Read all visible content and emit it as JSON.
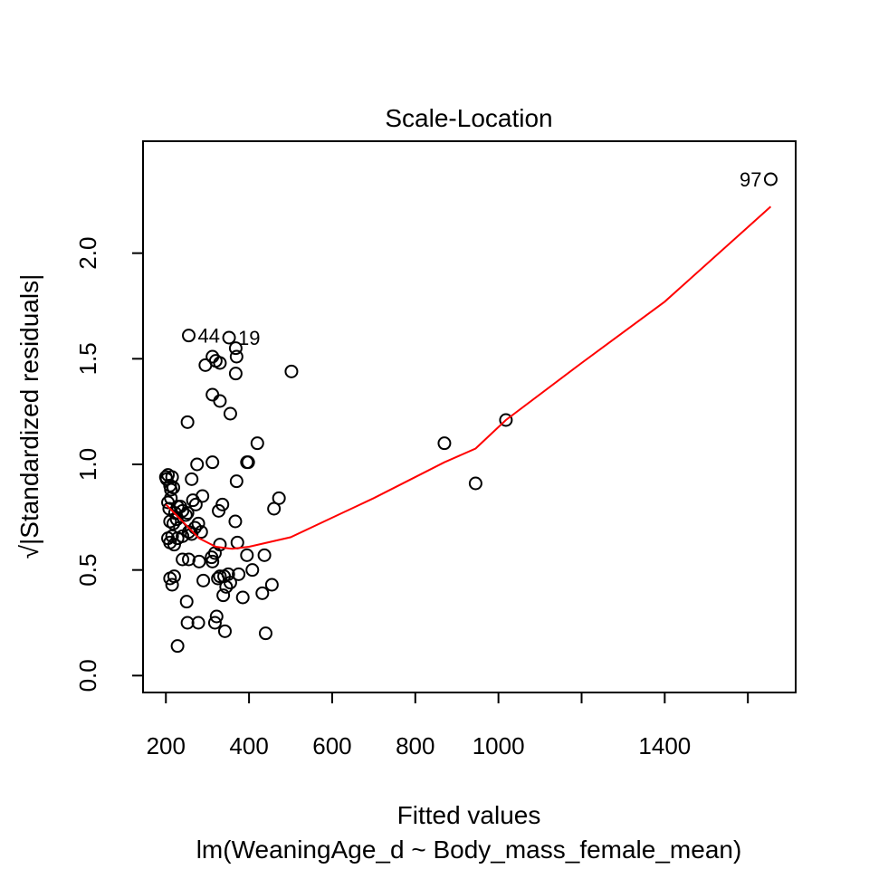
{
  "chart_data": {
    "type": "scatter",
    "title": "Scale-Location",
    "xlabel": "Fitted values",
    "subtitle": "lm(WeaningAge_d ~ Body_mass_female_mean)",
    "ylabel": "√|Standardized residuals|",
    "xlim": [
      145,
      1715
    ],
    "ylim": [
      -0.08,
      2.53
    ],
    "xticks": [
      {
        "value": 200,
        "label": "200"
      },
      {
        "value": 400,
        "label": "400"
      },
      {
        "value": 600,
        "label": "600"
      },
      {
        "value": 800,
        "label": "800"
      },
      {
        "value": 1000,
        "label": "1000"
      },
      {
        "value": 1200,
        "label": ""
      },
      {
        "value": 1400,
        "label": "1400"
      },
      {
        "value": 1600,
        "label": ""
      }
    ],
    "yticks": [
      {
        "value": 0.0,
        "label": "0.0"
      },
      {
        "value": 0.5,
        "label": "0.5"
      },
      {
        "value": 1.0,
        "label": "1.0"
      },
      {
        "value": 1.5,
        "label": "1.5"
      },
      {
        "value": 2.0,
        "label": "2.0"
      }
    ],
    "points": [
      {
        "x": 200,
        "y": 0.94
      },
      {
        "x": 202,
        "y": 0.93
      },
      {
        "x": 205,
        "y": 0.95
      },
      {
        "x": 210,
        "y": 0.9
      },
      {
        "x": 212,
        "y": 0.88
      },
      {
        "x": 215,
        "y": 0.94
      },
      {
        "x": 218,
        "y": 0.89
      },
      {
        "x": 205,
        "y": 0.82
      },
      {
        "x": 208,
        "y": 0.79
      },
      {
        "x": 212,
        "y": 0.84
      },
      {
        "x": 222,
        "y": 0.77
      },
      {
        "x": 228,
        "y": 0.8
      },
      {
        "x": 235,
        "y": 0.8
      },
      {
        "x": 240,
        "y": 0.78
      },
      {
        "x": 248,
        "y": 0.76
      },
      {
        "x": 252,
        "y": 0.77
      },
      {
        "x": 210,
        "y": 0.73
      },
      {
        "x": 218,
        "y": 0.72
      },
      {
        "x": 226,
        "y": 0.74
      },
      {
        "x": 234,
        "y": 0.7
      },
      {
        "x": 205,
        "y": 0.65
      },
      {
        "x": 210,
        "y": 0.63
      },
      {
        "x": 215,
        "y": 0.66
      },
      {
        "x": 220,
        "y": 0.62
      },
      {
        "x": 228,
        "y": 0.65
      },
      {
        "x": 240,
        "y": 0.66
      },
      {
        "x": 255,
        "y": 0.68
      },
      {
        "x": 262,
        "y": 0.67
      },
      {
        "x": 270,
        "y": 0.7
      },
      {
        "x": 278,
        "y": 0.72
      },
      {
        "x": 285,
        "y": 0.68
      },
      {
        "x": 265,
        "y": 0.83
      },
      {
        "x": 272,
        "y": 0.81
      },
      {
        "x": 288,
        "y": 0.85
      },
      {
        "x": 262,
        "y": 0.93
      },
      {
        "x": 275,
        "y": 1.0
      },
      {
        "x": 240,
        "y": 0.55
      },
      {
        "x": 255,
        "y": 0.55
      },
      {
        "x": 280,
        "y": 0.54
      },
      {
        "x": 310,
        "y": 0.56
      },
      {
        "x": 312,
        "y": 0.54
      },
      {
        "x": 318,
        "y": 0.58
      },
      {
        "x": 210,
        "y": 0.46
      },
      {
        "x": 215,
        "y": 0.43
      },
      {
        "x": 220,
        "y": 0.47
      },
      {
        "x": 250,
        "y": 0.35
      },
      {
        "x": 290,
        "y": 0.45
      },
      {
        "x": 325,
        "y": 0.46
      },
      {
        "x": 330,
        "y": 0.47
      },
      {
        "x": 340,
        "y": 0.47
      },
      {
        "x": 345,
        "y": 0.42
      },
      {
        "x": 350,
        "y": 0.48
      },
      {
        "x": 355,
        "y": 0.44
      },
      {
        "x": 338,
        "y": 0.38
      },
      {
        "x": 322,
        "y": 0.28
      },
      {
        "x": 318,
        "y": 0.25
      },
      {
        "x": 252,
        "y": 0.25
      },
      {
        "x": 278,
        "y": 0.25
      },
      {
        "x": 228,
        "y": 0.14
      },
      {
        "x": 342,
        "y": 0.21
      },
      {
        "x": 440,
        "y": 0.2
      },
      {
        "x": 385,
        "y": 0.37
      },
      {
        "x": 432,
        "y": 0.39
      },
      {
        "x": 455,
        "y": 0.43
      },
      {
        "x": 408,
        "y": 0.5
      },
      {
        "x": 375,
        "y": 0.48
      },
      {
        "x": 395,
        "y": 0.57
      },
      {
        "x": 437,
        "y": 0.57
      },
      {
        "x": 330,
        "y": 0.62
      },
      {
        "x": 372,
        "y": 0.63
      },
      {
        "x": 327,
        "y": 0.78
      },
      {
        "x": 336,
        "y": 0.81
      },
      {
        "x": 367,
        "y": 0.73
      },
      {
        "x": 460,
        "y": 0.79
      },
      {
        "x": 472,
        "y": 0.84
      },
      {
        "x": 370,
        "y": 0.92
      },
      {
        "x": 395,
        "y": 1.01
      },
      {
        "x": 398,
        "y": 1.01
      },
      {
        "x": 420,
        "y": 1.1
      },
      {
        "x": 312,
        "y": 1.01
      },
      {
        "x": 252,
        "y": 1.2
      },
      {
        "x": 312,
        "y": 1.33
      },
      {
        "x": 330,
        "y": 1.3
      },
      {
        "x": 355,
        "y": 1.24
      },
      {
        "x": 295,
        "y": 1.47
      },
      {
        "x": 320,
        "y": 1.49
      },
      {
        "x": 330,
        "y": 1.48
      },
      {
        "x": 312,
        "y": 1.51
      },
      {
        "x": 368,
        "y": 1.43
      },
      {
        "x": 370,
        "y": 1.51
      },
      {
        "x": 368,
        "y": 1.55
      },
      {
        "x": 255,
        "y": 1.61
      },
      {
        "x": 352,
        "y": 1.6
      },
      {
        "x": 502,
        "y": 1.44
      },
      {
        "x": 870,
        "y": 1.1
      },
      {
        "x": 945,
        "y": 0.91
      },
      {
        "x": 1018,
        "y": 1.21
      },
      {
        "x": 1655,
        "y": 2.35
      }
    ],
    "smooth_line": {
      "color": "#ff0000",
      "points": [
        {
          "x": 200,
          "y": 0.81
        },
        {
          "x": 250,
          "y": 0.71
        },
        {
          "x": 280,
          "y": 0.65
        },
        {
          "x": 320,
          "y": 0.61
        },
        {
          "x": 360,
          "y": 0.6
        },
        {
          "x": 400,
          "y": 0.61
        },
        {
          "x": 500,
          "y": 0.655
        },
        {
          "x": 700,
          "y": 0.84
        },
        {
          "x": 870,
          "y": 1.01
        },
        {
          "x": 945,
          "y": 1.075
        },
        {
          "x": 1018,
          "y": 1.21
        },
        {
          "x": 1200,
          "y": 1.48
        },
        {
          "x": 1400,
          "y": 1.77
        },
        {
          "x": 1655,
          "y": 2.22
        }
      ]
    },
    "annotations": [
      {
        "text": "97",
        "x": 1655,
        "y": 2.35,
        "side": "left"
      },
      {
        "text": "44",
        "x": 255,
        "y": 1.61,
        "side": "right"
      },
      {
        "text": "19",
        "x": 352,
        "y": 1.6,
        "side": "right"
      }
    ],
    "grid": false,
    "legend": "none"
  }
}
